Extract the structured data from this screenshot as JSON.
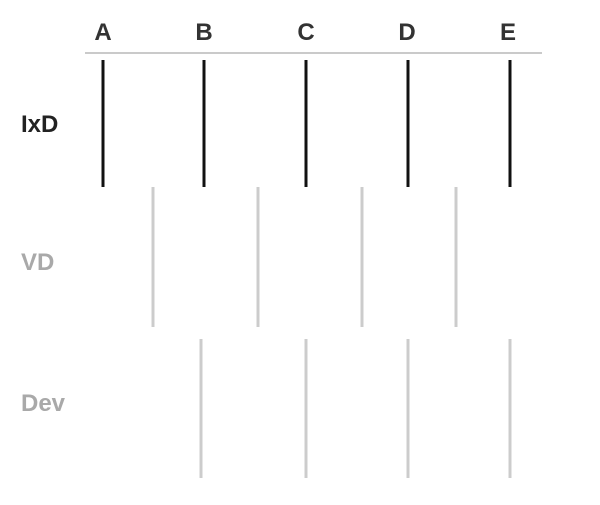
{
  "columns": [
    "A",
    "B",
    "C",
    "D",
    "E"
  ],
  "rows": [
    {
      "label": "IxD",
      "emphasis": "primary",
      "color": "#222222"
    },
    {
      "label": "VD",
      "emphasis": "secondary",
      "color": "#a9a9a9"
    },
    {
      "label": "Dev",
      "emphasis": "secondary",
      "color": "#a9a9a9"
    }
  ],
  "colors": {
    "primary_line": "#111111",
    "secondary_line": "#cccccc",
    "header_rule": "#aaaaaa",
    "column_label": "#333333"
  }
}
